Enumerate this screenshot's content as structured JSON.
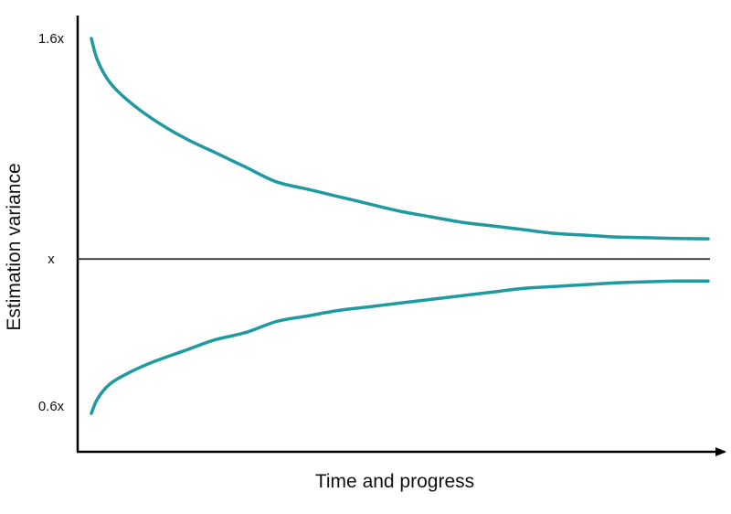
{
  "chart_data": {
    "type": "line",
    "title": "",
    "xlabel": "Time and progress",
    "ylabel": "Estimation variance",
    "y_ticks": [
      {
        "value": 1.6,
        "label": "1.6x"
      },
      {
        "value": 1.0,
        "label": "x"
      },
      {
        "value": 0.6,
        "label": "0.6x"
      }
    ],
    "xlim": [
      0,
      100
    ],
    "ylim": [
      0.5,
      1.7
    ],
    "grid": false,
    "legend": "none",
    "reference_line": {
      "y": 1.0,
      "color": "#3a3a3a"
    },
    "series": [
      {
        "color": "#1f9aa1",
        "x": [
          0,
          1,
          3,
          6,
          10,
          15,
          20,
          25,
          30,
          35,
          40,
          45,
          50,
          55,
          60,
          65,
          70,
          75,
          80,
          85,
          90,
          95,
          100
        ],
        "y": [
          1.6,
          1.54,
          1.48,
          1.43,
          1.38,
          1.33,
          1.29,
          1.25,
          1.21,
          1.19,
          1.17,
          1.15,
          1.13,
          1.115,
          1.1,
          1.09,
          1.08,
          1.07,
          1.065,
          1.06,
          1.058,
          1.056,
          1.055
        ]
      },
      {
        "color": "#1f9aa1",
        "x": [
          0,
          1,
          3,
          6,
          10,
          15,
          20,
          25,
          30,
          35,
          40,
          45,
          50,
          55,
          60,
          65,
          70,
          75,
          80,
          85,
          90,
          95,
          100
        ],
        "y": [
          0.58,
          0.62,
          0.66,
          0.69,
          0.72,
          0.75,
          0.78,
          0.8,
          0.83,
          0.845,
          0.86,
          0.87,
          0.88,
          0.89,
          0.9,
          0.91,
          0.92,
          0.925,
          0.93,
          0.935,
          0.938,
          0.94,
          0.94
        ]
      }
    ]
  }
}
